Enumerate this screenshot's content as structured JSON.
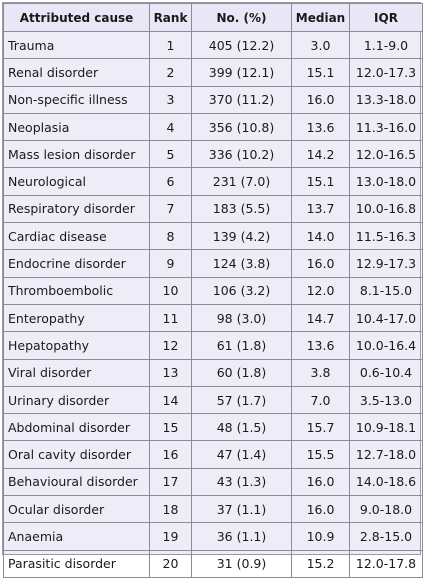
{
  "table": {
    "headers": [
      "Attributed cause",
      "Rank",
      "No. (%)",
      "Median",
      "IQR"
    ],
    "rows": [
      {
        "cause": "Trauma",
        "rank": "1",
        "no": "405 (12.2)",
        "median": "3.0",
        "iqr": "1.1-9.0"
      },
      {
        "cause": "Renal disorder",
        "rank": "2",
        "no": "399 (12.1)",
        "median": "15.1",
        "iqr": "12.0-17.3"
      },
      {
        "cause": "Non-specific illness",
        "rank": "3",
        "no": "370 (11.2)",
        "median": "16.0",
        "iqr": "13.3-18.0"
      },
      {
        "cause": "Neoplasia",
        "rank": "4",
        "no": "356 (10.8)",
        "median": "13.6",
        "iqr": "11.3-16.0"
      },
      {
        "cause": "Mass lesion disorder",
        "rank": "5",
        "no": "336 (10.2)",
        "median": "14.2",
        "iqr": "12.0-16.5"
      },
      {
        "cause": "Neurological",
        "rank": "6",
        "no": "231 (7.0)",
        "median": "15.1",
        "iqr": "13.0-18.0"
      },
      {
        "cause": "Respiratory disorder",
        "rank": "7",
        "no": "183 (5.5)",
        "median": "13.7",
        "iqr": "10.0-16.8"
      },
      {
        "cause": "Cardiac disease",
        "rank": "8",
        "no": "139 (4.2)",
        "median": "14.0",
        "iqr": "11.5-16.3"
      },
      {
        "cause": "Endocrine disorder",
        "rank": "9",
        "no": "124 (3.8)",
        "median": "16.0",
        "iqr": "12.9-17.3"
      },
      {
        "cause": "Thromboembolic",
        "rank": "10",
        "no": "106 (3.2)",
        "median": "12.0",
        "iqr": "8.1-15.0"
      },
      {
        "cause": "Enteropathy",
        "rank": "11",
        "no": "98 (3.0)",
        "median": "14.7",
        "iqr": "10.4-17.0"
      },
      {
        "cause": "Hepatopathy",
        "rank": "12",
        "no": "61 (1.8)",
        "median": "13.6",
        "iqr": "10.0-16.4"
      },
      {
        "cause": "Viral disorder",
        "rank": "13",
        "no": "60 (1.8)",
        "median": "3.8",
        "iqr": "0.6-10.4"
      },
      {
        "cause": "Urinary disorder",
        "rank": "14",
        "no": "57 (1.7)",
        "median": "7.0",
        "iqr": "3.5-13.0"
      },
      {
        "cause": "Abdominal disorder",
        "rank": "15",
        "no": "48 (1.5)",
        "median": "15.7",
        "iqr": "10.9-18.1"
      },
      {
        "cause": "Oral cavity disorder",
        "rank": "16",
        "no": "47 (1.4)",
        "median": "15.5",
        "iqr": "12.7-18.0"
      },
      {
        "cause": "Behavioural disorder",
        "rank": "17",
        "no": "43 (1.3)",
        "median": "16.0",
        "iqr": "14.0-18.6"
      },
      {
        "cause": " Ocular disorder",
        "rank": "18",
        "no": "37 (1.1)",
        "median": "16.0",
        "iqr": "9.0-18.0"
      },
      {
        "cause": "Anaemia",
        "rank": "19",
        "no": "36 (1.1)",
        "median": "10.9",
        "iqr": "2.8-15.0"
      },
      {
        "cause": "Parasitic disorder",
        "rank": "20",
        "no": "31 (0.9)",
        "median": "15.2",
        "iqr": "12.0-17.8"
      }
    ]
  }
}
